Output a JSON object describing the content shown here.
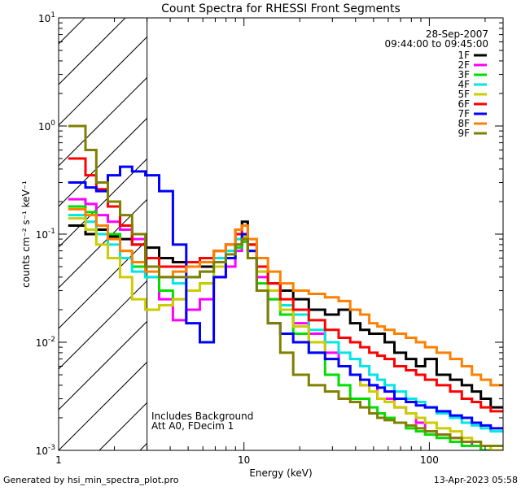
{
  "chart_data": {
    "type": "line",
    "title": "Count Spectra for RHESSI Front Segments",
    "xlabel": "Energy (keV)",
    "ylabel": "counts cm⁻² s⁻¹ keV⁻¹",
    "xscale": "log",
    "yscale": "log",
    "xlim": [
      1,
      250
    ],
    "ylim": [
      0.001,
      10
    ],
    "x_tick_labels": [
      {
        "value": 1,
        "label": "1"
      },
      {
        "value": 10,
        "label": "10"
      },
      {
        "value": 100,
        "label": "100"
      }
    ],
    "y_tick_labels": [
      {
        "value": 0.001,
        "base": "10",
        "exp": "-3"
      },
      {
        "value": 0.01,
        "base": "10",
        "exp": "-2"
      },
      {
        "value": 0.1,
        "base": "10",
        "exp": "-1"
      },
      {
        "value": 1,
        "base": "10",
        "exp": "0"
      },
      {
        "value": 10,
        "base": "10",
        "exp": "1"
      }
    ],
    "date": "28-Sep-2007",
    "time_range": "09:44:00 to 09:45:00",
    "excluded_region": {
      "x_from": 1,
      "x_to": 3
    },
    "annotations": [
      "Includes Background",
      "Att A0, FDecim 1"
    ],
    "footer_left": "Generated by hsi_min_spectra_plot.pro",
    "footer_right": "13-Apr-2023 05:58",
    "series": [
      {
        "name": "1F",
        "color": "#000000",
        "x": [
          1.3,
          1.5,
          1.7,
          2.0,
          2.3,
          2.7,
          3.2,
          3.8,
          4.5,
          5.3,
          6.3,
          7.5,
          8.5,
          9.5,
          10,
          11,
          12.5,
          14.5,
          17,
          20,
          25,
          30,
          35,
          40,
          45,
          50,
          55,
          60,
          70,
          80,
          90,
          100,
          120,
          140,
          160,
          180,
          200,
          230
        ],
        "y": [
          0.12,
          0.1,
          0.11,
          0.095,
          0.09,
          0.08,
          0.075,
          0.06,
          0.055,
          0.05,
          0.05,
          0.07,
          0.08,
          0.11,
          0.13,
          0.08,
          0.05,
          0.035,
          0.03,
          0.025,
          0.02,
          0.018,
          0.02,
          0.015,
          0.013,
          0.012,
          0.012,
          0.01,
          0.008,
          0.007,
          0.006,
          0.007,
          0.005,
          0.0045,
          0.004,
          0.0035,
          0.003,
          0.0025
        ]
      },
      {
        "name": "2F",
        "color": "#ff00ff",
        "x": [
          1.3,
          1.5,
          1.7,
          2.0,
          2.3,
          2.7,
          3.2,
          3.8,
          4.5,
          5.3,
          6.3,
          7.5,
          8.5,
          9.5,
          10,
          11,
          12.5,
          14.5,
          17,
          20,
          25,
          30,
          35,
          40,
          45,
          50,
          55,
          60,
          70,
          80,
          90,
          100,
          120,
          140,
          160,
          180,
          200,
          230
        ],
        "y": [
          0.21,
          0.19,
          0.15,
          0.13,
          0.11,
          0.09,
          0.05,
          0.025,
          0.016,
          0.02,
          0.025,
          0.04,
          0.05,
          0.07,
          0.09,
          0.07,
          0.04,
          0.025,
          0.02,
          0.015,
          0.012,
          0.008,
          0.006,
          0.005,
          0.004,
          0.004,
          0.003,
          0.003,
          0.0025,
          0.0022,
          0.0018,
          0.0015,
          0.0014,
          0.0013,
          0.0012,
          0.0011,
          0.001,
          0.001
        ]
      },
      {
        "name": "3F",
        "color": "#00dd00",
        "x": [
          1.3,
          1.5,
          1.7,
          2.0,
          2.3,
          2.7,
          3.2,
          3.8,
          4.5,
          5.3,
          6.3,
          7.5,
          8.5,
          9.5,
          10,
          11,
          12.5,
          14.5,
          17,
          20,
          25,
          30,
          35,
          40,
          45,
          50,
          55,
          60,
          70,
          80,
          90,
          100,
          120,
          140,
          160,
          180,
          200,
          230
        ],
        "y": [
          0.18,
          0.16,
          0.12,
          0.1,
          0.07,
          0.05,
          0.04,
          0.03,
          0.025,
          0.03,
          0.035,
          0.05,
          0.06,
          0.075,
          0.085,
          0.06,
          0.035,
          0.025,
          0.018,
          0.012,
          0.008,
          0.005,
          0.004,
          0.003,
          0.003,
          0.0025,
          0.0022,
          0.002,
          0.0018,
          0.0016,
          0.0015,
          0.0014,
          0.0013,
          0.0012,
          0.0011,
          0.0011,
          0.001,
          0.001
        ]
      },
      {
        "name": "4F",
        "color": "#00e5e5",
        "x": [
          1.3,
          1.5,
          1.7,
          2.0,
          2.3,
          2.7,
          3.2,
          3.8,
          4.5,
          5.3,
          6.3,
          7.5,
          8.5,
          9.5,
          10,
          11,
          12.5,
          14.5,
          17,
          20,
          25,
          30,
          35,
          40,
          45,
          50,
          55,
          60,
          70,
          80,
          90,
          100,
          120,
          140,
          160,
          180,
          200,
          230
        ],
        "y": [
          0.15,
          0.13,
          0.1,
          0.08,
          0.06,
          0.045,
          0.04,
          0.04,
          0.035,
          0.04,
          0.045,
          0.06,
          0.07,
          0.09,
          0.1,
          0.07,
          0.045,
          0.03,
          0.022,
          0.018,
          0.013,
          0.01,
          0.008,
          0.007,
          0.006,
          0.005,
          0.0045,
          0.004,
          0.0035,
          0.003,
          0.0028,
          0.0025,
          0.0022,
          0.002,
          0.0018,
          0.0017,
          0.0016,
          0.0015
        ]
      },
      {
        "name": "5F",
        "color": "#cccc00",
        "x": [
          1.3,
          1.5,
          1.7,
          2.0,
          2.3,
          2.7,
          3.2,
          3.8,
          4.5,
          5.3,
          6.3,
          7.5,
          8.5,
          9.5,
          10,
          11,
          12.5,
          14.5,
          17,
          20,
          25,
          30,
          35,
          40,
          45,
          50,
          55,
          60,
          70,
          80,
          90,
          100,
          120,
          140,
          160,
          180,
          200,
          230
        ],
        "y": [
          0.14,
          0.11,
          0.08,
          0.06,
          0.04,
          0.025,
          0.02,
          0.022,
          0.025,
          0.03,
          0.035,
          0.05,
          0.06,
          0.08,
          0.095,
          0.07,
          0.045,
          0.03,
          0.02,
          0.014,
          0.01,
          0.007,
          0.006,
          0.005,
          0.004,
          0.0035,
          0.003,
          0.0028,
          0.0025,
          0.0022,
          0.002,
          0.0018,
          0.0016,
          0.0015,
          0.0013,
          0.0012,
          0.0011,
          0.001
        ]
      },
      {
        "name": "6F",
        "color": "#ff0000",
        "x": [
          1.3,
          1.5,
          1.7,
          2.0,
          2.3,
          2.7,
          3.2,
          3.8,
          4.5,
          5.3,
          6.3,
          7.5,
          8.5,
          9.5,
          10,
          11,
          12.5,
          14.5,
          17,
          20,
          25,
          30,
          35,
          40,
          45,
          50,
          55,
          60,
          70,
          80,
          90,
          100,
          120,
          140,
          160,
          180,
          200,
          230
        ],
        "y": [
          0.5,
          0.35,
          0.26,
          0.18,
          0.12,
          0.08,
          0.06,
          0.05,
          0.05,
          0.055,
          0.06,
          0.07,
          0.08,
          0.1,
          0.12,
          0.08,
          0.05,
          0.035,
          0.025,
          0.02,
          0.016,
          0.013,
          0.011,
          0.01,
          0.009,
          0.008,
          0.0075,
          0.007,
          0.006,
          0.0055,
          0.005,
          0.0045,
          0.004,
          0.0035,
          0.003,
          0.0028,
          0.0025,
          0.0023
        ]
      },
      {
        "name": "7F",
        "color": "#0000ff",
        "x": [
          1.3,
          1.5,
          1.7,
          2.0,
          2.3,
          2.7,
          3.2,
          3.8,
          4.5,
          5.3,
          6.3,
          7.5,
          8.5,
          9.5,
          10,
          11,
          12.5,
          14.5,
          17,
          20,
          25,
          30,
          35,
          40,
          45,
          50,
          55,
          60,
          70,
          80,
          90,
          100,
          120,
          140,
          160,
          180,
          200,
          230
        ],
        "y": [
          0.3,
          0.27,
          0.25,
          0.35,
          0.42,
          0.38,
          0.35,
          0.25,
          0.08,
          0.015,
          0.01,
          0.04,
          0.06,
          0.08,
          0.1,
          0.07,
          0.03,
          0.015,
          0.012,
          0.01,
          0.008,
          0.007,
          0.006,
          0.005,
          0.0045,
          0.004,
          0.0038,
          0.0035,
          0.003,
          0.0028,
          0.0026,
          0.0025,
          0.0023,
          0.0021,
          0.002,
          0.0018,
          0.0017,
          0.0016
        ]
      },
      {
        "name": "8F",
        "color": "#ff8000",
        "x": [
          1.3,
          1.5,
          1.7,
          2.0,
          2.3,
          2.7,
          3.2,
          3.8,
          4.5,
          5.3,
          6.3,
          7.5,
          8.5,
          9.5,
          10,
          11,
          12.5,
          14.5,
          17,
          20,
          25,
          30,
          35,
          40,
          45,
          50,
          55,
          60,
          70,
          80,
          90,
          100,
          120,
          140,
          160,
          180,
          200,
          230
        ],
        "y": [
          0.17,
          0.15,
          0.12,
          0.09,
          0.07,
          0.055,
          0.045,
          0.04,
          0.045,
          0.05,
          0.055,
          0.07,
          0.08,
          0.11,
          0.12,
          0.09,
          0.06,
          0.045,
          0.035,
          0.03,
          0.028,
          0.026,
          0.024,
          0.02,
          0.018,
          0.015,
          0.014,
          0.013,
          0.012,
          0.011,
          0.01,
          0.009,
          0.008,
          0.007,
          0.006,
          0.005,
          0.0045,
          0.004
        ]
      },
      {
        "name": "9F",
        "color": "#808000",
        "x": [
          1.3,
          1.5,
          1.7,
          2.0,
          2.3,
          2.7,
          3.2,
          3.8,
          4.5,
          5.3,
          6.3,
          7.5,
          8.5,
          9.5,
          10,
          11,
          12.5,
          14.5,
          17,
          20,
          25,
          30,
          35,
          40,
          45,
          50,
          55,
          60,
          70,
          80,
          90,
          100,
          120,
          140,
          160,
          180,
          200,
          230
        ],
        "y": [
          1.0,
          0.6,
          0.3,
          0.2,
          0.15,
          0.1,
          0.05,
          0.04,
          0.04,
          0.04,
          0.045,
          0.055,
          0.065,
          0.08,
          0.09,
          0.06,
          0.03,
          0.015,
          0.008,
          0.005,
          0.004,
          0.0035,
          0.003,
          0.0028,
          0.0025,
          0.0022,
          0.002,
          0.0019,
          0.0018,
          0.0017,
          0.0016,
          0.0015,
          0.0014,
          0.0013,
          0.0012,
          0.0012,
          0.0011,
          0.0011
        ]
      }
    ]
  }
}
